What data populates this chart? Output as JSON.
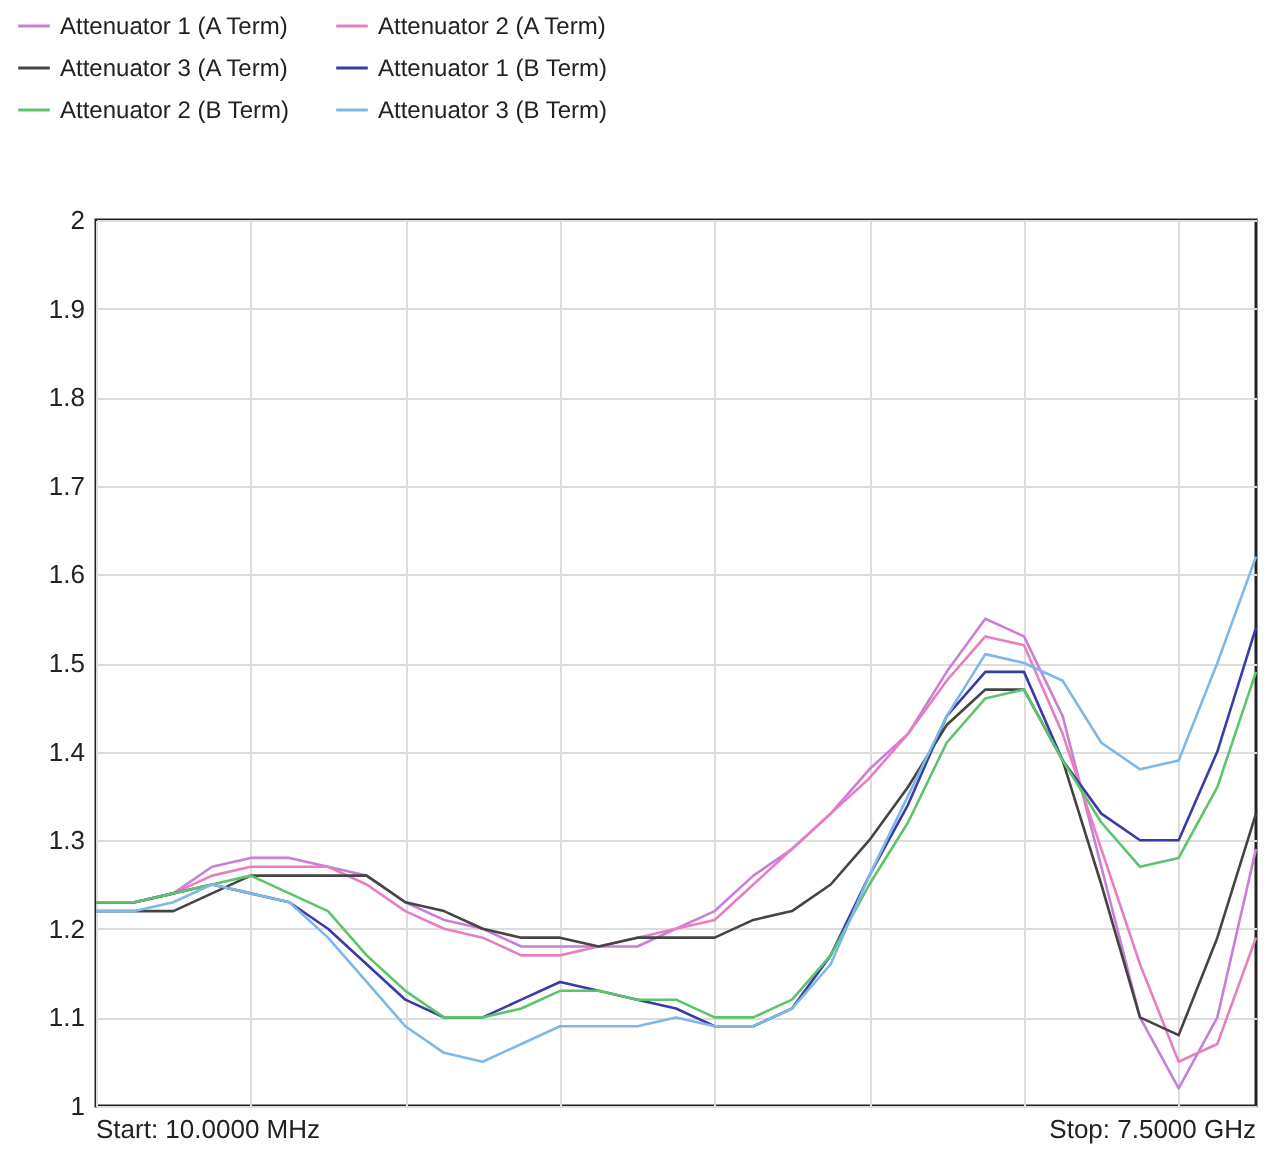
{
  "chart_data": {
    "type": "line",
    "categories": [
      null,
      null,
      null,
      null,
      null,
      null,
      null,
      null,
      null,
      null,
      null,
      null,
      null,
      null,
      null,
      null,
      null,
      null,
      null,
      null,
      null,
      null,
      null,
      null,
      null,
      null,
      null,
      null,
      null,
      null,
      null
    ],
    "series": [
      {
        "name": "Attenuator 1 (A Term)",
        "color": "#c77fd9",
        "values": [
          1.23,
          1.23,
          1.24,
          1.27,
          1.28,
          1.28,
          1.27,
          1.26,
          1.23,
          1.21,
          1.2,
          1.18,
          1.18,
          1.18,
          1.18,
          1.2,
          1.22,
          1.26,
          1.29,
          1.33,
          1.38,
          1.42,
          1.49,
          1.55,
          1.53,
          1.44,
          1.27,
          1.1,
          1.02,
          1.1,
          1.29
        ]
      },
      {
        "name": "Attenuator 2 (A Term)",
        "color": "#e77fbf",
        "values": [
          1.23,
          1.23,
          1.24,
          1.26,
          1.27,
          1.27,
          1.27,
          1.25,
          1.22,
          1.2,
          1.19,
          1.17,
          1.17,
          1.18,
          1.19,
          1.2,
          1.21,
          1.25,
          1.29,
          1.33,
          1.37,
          1.42,
          1.48,
          1.53,
          1.52,
          1.42,
          1.29,
          1.16,
          1.05,
          1.07,
          1.19
        ]
      },
      {
        "name": "Attenuator 3 (A Term)",
        "color": "#444444",
        "values": [
          1.22,
          1.22,
          1.22,
          1.24,
          1.26,
          1.26,
          1.26,
          1.26,
          1.23,
          1.22,
          1.2,
          1.19,
          1.19,
          1.18,
          1.19,
          1.19,
          1.19,
          1.21,
          1.22,
          1.25,
          1.3,
          1.36,
          1.43,
          1.47,
          1.47,
          1.39,
          1.25,
          1.1,
          1.08,
          1.19,
          1.33
        ]
      },
      {
        "name": "Attenuator 1 (B Term)",
        "color": "#3b3ba8",
        "values": [
          1.23,
          1.23,
          1.24,
          1.25,
          1.24,
          1.23,
          1.2,
          1.16,
          1.12,
          1.1,
          1.1,
          1.12,
          1.14,
          1.13,
          1.12,
          1.11,
          1.09,
          1.09,
          1.11,
          1.17,
          1.26,
          1.34,
          1.44,
          1.49,
          1.49,
          1.39,
          1.33,
          1.3,
          1.3,
          1.4,
          1.54
        ]
      },
      {
        "name": "Attenuator 2 (B Term)",
        "color": "#5dc46a",
        "values": [
          1.23,
          1.23,
          1.24,
          1.25,
          1.26,
          1.24,
          1.22,
          1.17,
          1.13,
          1.1,
          1.1,
          1.11,
          1.13,
          1.13,
          1.12,
          1.12,
          1.1,
          1.1,
          1.12,
          1.17,
          1.25,
          1.32,
          1.41,
          1.46,
          1.47,
          1.39,
          1.32,
          1.27,
          1.28,
          1.36,
          1.49
        ]
      },
      {
        "name": "Attenuator 3 (B Term)",
        "color": "#7fb8e6",
        "values": [
          1.22,
          1.22,
          1.23,
          1.25,
          1.24,
          1.23,
          1.19,
          1.14,
          1.09,
          1.06,
          1.05,
          1.07,
          1.09,
          1.09,
          1.09,
          1.1,
          1.09,
          1.09,
          1.11,
          1.16,
          1.26,
          1.35,
          1.44,
          1.51,
          1.5,
          1.48,
          1.41,
          1.38,
          1.39,
          1.5,
          1.62
        ]
      }
    ],
    "ylim": [
      1,
      2
    ],
    "yticks": [
      1,
      1.1,
      1.2,
      1.3,
      1.4,
      1.5,
      1.6,
      1.7,
      1.8,
      1.9,
      2
    ],
    "grid": true,
    "legend": "top left",
    "tick_labels": "y",
    "marker": "none",
    "line_style": "solid",
    "annotations": [
      "Start: 10.0000 MHz",
      "Stop: 7.5000 GHz"
    ]
  }
}
